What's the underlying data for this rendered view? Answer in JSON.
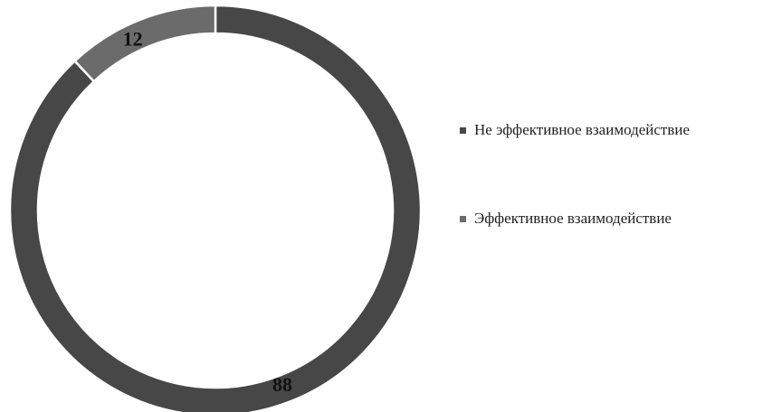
{
  "chart_data": {
    "type": "pie",
    "style": "donut",
    "categories": [
      "Не эффективное взаимодействие",
      "Эффективное взаимодействие"
    ],
    "values": [
      88,
      12
    ],
    "data_labels": [
      "88",
      "12"
    ],
    "colors": [
      "#474747",
      "#6b6b6b"
    ],
    "legend": {
      "position": "right",
      "entries": [
        "Не эффективное взаимодействие",
        "Эффективное взаимодействие"
      ]
    }
  }
}
